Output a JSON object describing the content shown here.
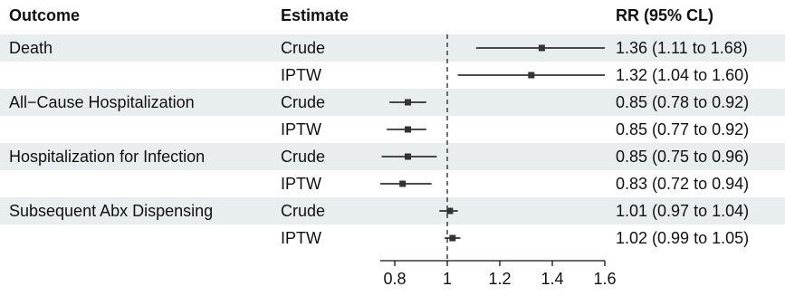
{
  "headers": {
    "outcome": "Outcome",
    "estimate": "Estimate",
    "rr": "RR (95% CL)"
  },
  "chart_data": {
    "type": "forest",
    "reference_line": 1,
    "xlim": [
      0.7,
      1.7
    ],
    "xticks": [
      "0.8",
      "1",
      "1.2",
      "1.4",
      "1.6"
    ],
    "xtick_values": [
      0.8,
      1,
      1.2,
      1.4,
      1.6
    ],
    "rows": [
      {
        "outcome": "Death",
        "estimate": "Crude",
        "rr": 1.36,
        "lo": 1.11,
        "hi": 1.68,
        "label": "1.36 (1.11 to 1.68)",
        "band": true
      },
      {
        "outcome": "",
        "estimate": "IPTW",
        "rr": 1.32,
        "lo": 1.04,
        "hi": 1.6,
        "label": "1.32 (1.04 to 1.60)",
        "band": false
      },
      {
        "outcome": "All−Cause Hospitalization",
        "estimate": "Crude",
        "rr": 0.85,
        "lo": 0.78,
        "hi": 0.92,
        "label": "0.85 (0.78 to 0.92)",
        "band": true
      },
      {
        "outcome": "",
        "estimate": "IPTW",
        "rr": 0.85,
        "lo": 0.77,
        "hi": 0.92,
        "label": "0.85 (0.77 to 0.92)",
        "band": false
      },
      {
        "outcome": "Hospitalization for Infection",
        "estimate": "Crude",
        "rr": 0.85,
        "lo": 0.75,
        "hi": 0.96,
        "label": "0.85 (0.75 to 0.96)",
        "band": true
      },
      {
        "outcome": "",
        "estimate": "IPTW",
        "rr": 0.83,
        "lo": 0.72,
        "hi": 0.94,
        "label": "0.83 (0.72 to 0.94)",
        "band": false
      },
      {
        "outcome": "Subsequent Abx Dispensing",
        "estimate": "Crude",
        "rr": 1.01,
        "lo": 0.97,
        "hi": 1.04,
        "label": "1.01 (0.97 to 1.04)",
        "band": true
      },
      {
        "outcome": "",
        "estimate": "IPTW",
        "rr": 1.02,
        "lo": 0.99,
        "hi": 1.05,
        "label": "1.02 (0.99 to 1.05)",
        "band": false
      }
    ]
  }
}
